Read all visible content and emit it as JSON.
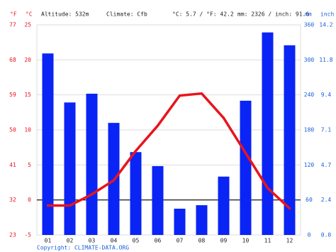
{
  "chart_data": {
    "type": "bar",
    "header": {
      "f_unit": "°F",
      "c_unit": "°C",
      "altitude": "Altitude: 532m",
      "climate": "Climate: Cfb",
      "temp": "°C: 5.7 / °F: 42.2",
      "precip": "mm: 2326 / inch: 91.6",
      "mm_unit": "mm",
      "inch_unit": "inch"
    },
    "copyright": "Copyright: CLIMATE-DATA.ORG",
    "categories": [
      "01",
      "02",
      "03",
      "04",
      "05",
      "06",
      "07",
      "08",
      "09",
      "10",
      "11",
      "12"
    ],
    "series": [
      {
        "name": "Precipitation",
        "type": "bar",
        "axis": "y2",
        "color": "#0a24f5",
        "values": [
          311,
          227,
          242,
          192,
          142,
          118,
          45,
          51,
          100,
          230,
          347,
          325
        ]
      },
      {
        "name": "Temperature",
        "type": "line",
        "color": "#e8141c",
        "values": [
          -0.8,
          -0.8,
          0.8,
          2.8,
          7.0,
          10.6,
          14.9,
          15.2,
          11.7,
          6.7,
          1.7,
          -1.2
        ]
      }
    ],
    "ylim": [
      -5,
      25
    ],
    "yticks": [
      -5,
      0,
      5,
      10,
      15,
      20,
      25
    ],
    "yticks_f": [
      {
        "value": -5,
        "label": "23"
      },
      {
        "value": 0,
        "label": "32"
      },
      {
        "value": 5,
        "label": "41"
      },
      {
        "value": 10,
        "label": "50"
      },
      {
        "value": 15,
        "label": "59"
      },
      {
        "value": 20,
        "label": "68"
      },
      {
        "value": 25,
        "label": "77"
      }
    ],
    "y2lim": [
      0,
      360
    ],
    "y2ticks": [
      0,
      60,
      120,
      180,
      240,
      300,
      360
    ],
    "y2ticks_inch": [
      {
        "value": 0,
        "label": "0.0"
      },
      {
        "value": 60,
        "label": "2.4"
      },
      {
        "value": 120,
        "label": "4.7"
      },
      {
        "value": 180,
        "label": "7.1"
      },
      {
        "value": 240,
        "label": "9.4"
      },
      {
        "value": 300,
        "label": "11.8"
      },
      {
        "value": 360,
        "label": "14.2"
      }
    ],
    "grid": true
  }
}
